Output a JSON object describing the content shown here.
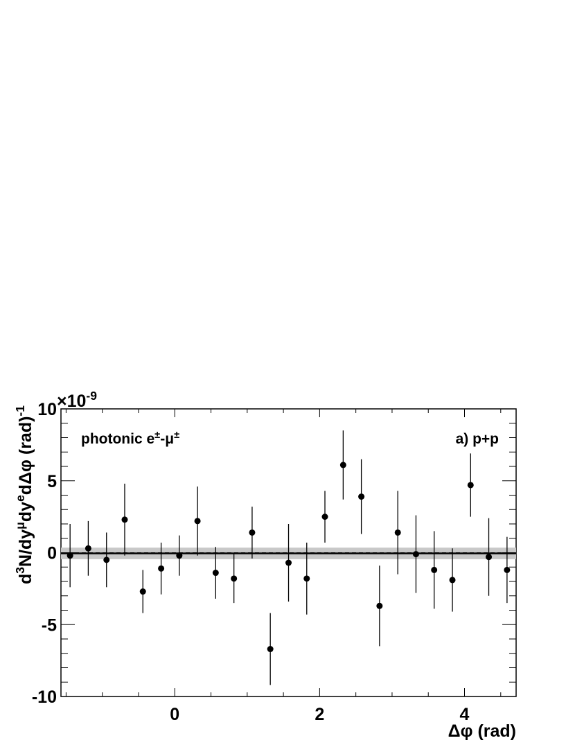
{
  "chart_data": {
    "type": "scatter",
    "title": "a) p+p",
    "annotation_parts": [
      {
        "text": "photonic e",
        "sup": false
      },
      {
        "text": "±",
        "sup": true
      },
      {
        "text": "-μ",
        "sup": false
      },
      {
        "text": "±",
        "sup": true
      }
    ],
    "xlabel": "Δφ (rad)",
    "ylabel_parts": [
      {
        "text": "d",
        "sup": false
      },
      {
        "text": "3",
        "sup": true
      },
      {
        "text": "N/dy",
        "sup": false
      },
      {
        "text": "μ",
        "sup": true
      },
      {
        "text": "dy",
        "sup": false
      },
      {
        "text": "e",
        "sup": true
      },
      {
        "text": "dΔφ (rad)",
        "sup": false
      },
      {
        "text": "-1",
        "sup": true
      }
    ],
    "multiplier_parts": [
      {
        "text": "×10",
        "sup": false
      },
      {
        "text": "-9",
        "sup": true
      }
    ],
    "x": [
      -1.445,
      -1.194,
      -0.942,
      -0.691,
      -0.44,
      -0.188,
      0.063,
      0.314,
      0.565,
      0.817,
      1.068,
      1.319,
      1.571,
      1.822,
      2.073,
      2.325,
      2.576,
      2.827,
      3.079,
      3.33,
      3.581,
      3.833,
      4.084,
      4.335,
      4.587
    ],
    "series": [
      {
        "color": "#000000",
        "values": [
          -0.2,
          0.3,
          -0.5,
          2.3,
          -2.7,
          -1.1,
          -0.2,
          2.2,
          -1.4,
          -1.8,
          1.4,
          -6.7,
          -0.7,
          -1.8,
          2.5,
          6.1,
          3.9,
          -3.7,
          1.4,
          -0.1,
          -1.2,
          -1.9,
          4.7,
          -0.3,
          -1.2
        ],
        "errors": [
          2.2,
          1.9,
          1.9,
          2.5,
          1.5,
          1.8,
          1.4,
          2.4,
          1.8,
          1.7,
          1.8,
          2.5,
          2.7,
          2.5,
          1.8,
          2.4,
          2.6,
          2.8,
          2.9,
          2.7,
          2.7,
          2.2,
          2.2,
          2.7,
          2.3
        ]
      }
    ],
    "fit_value": -0.05,
    "band_halfwidth": 0.4,
    "band_color": "#c8c8c8",
    "xlim": [
      -1.5708,
      4.7124
    ],
    "ylim": [
      -10,
      10
    ],
    "xticks": [
      0,
      2,
      4
    ],
    "yticks": [
      -10,
      -5,
      0,
      5,
      10
    ],
    "xminor_ticks": [
      -1.5,
      -1,
      -0.5,
      0.5,
      1,
      1.5,
      2.5,
      3,
      3.5,
      4.5
    ],
    "yminor_ticks": [
      -9,
      -8,
      -7,
      -6,
      -4,
      -3,
      -2,
      -1,
      1,
      2,
      3,
      4,
      6,
      7,
      8,
      9
    ]
  }
}
